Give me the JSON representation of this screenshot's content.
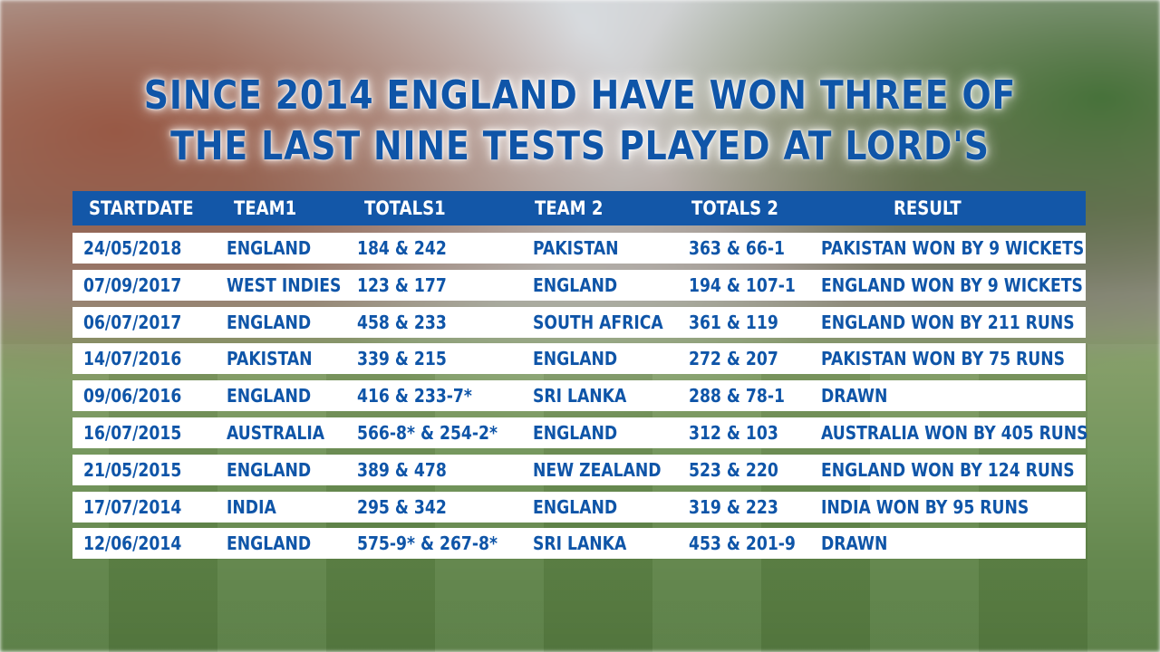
{
  "headline": {
    "line1": "SINCE 2014 ENGLAND HAVE WON THREE OF",
    "line2": "THE LAST NINE TESTS PLAYED AT LORD'S"
  },
  "colors": {
    "accent": "#1357a8",
    "text": "#0f55a8",
    "row_bg": "#ffffff"
  },
  "table": {
    "headers": [
      "STARTDATE",
      "TEAM1",
      "TOTALS1",
      "TEAM 2",
      "TOTALS 2",
      "RESULT"
    ],
    "rows": [
      [
        "24/05/2018",
        "ENGLAND",
        "184 & 242",
        "PAKISTAN",
        "363 & 66-1",
        "PAKISTAN WON BY 9 WICKETS"
      ],
      [
        "07/09/2017",
        "WEST INDIES",
        "123 & 177",
        "ENGLAND",
        "194 & 107-1",
        "ENGLAND WON BY 9 WICKETS"
      ],
      [
        "06/07/2017",
        "ENGLAND",
        "458 & 233",
        "SOUTH AFRICA",
        "361 & 119",
        "ENGLAND WON BY 211 RUNS"
      ],
      [
        "14/07/2016",
        "PAKISTAN",
        "339 & 215",
        "ENGLAND",
        "272 & 207",
        "PAKISTAN WON BY 75 RUNS"
      ],
      [
        "09/06/2016",
        "ENGLAND",
        "416 & 233-7*",
        "SRI LANKA",
        "288 & 78-1",
        "DRAWN"
      ],
      [
        "16/07/2015",
        "AUSTRALIA",
        "566-8* & 254-2*",
        "ENGLAND",
        "312 & 103",
        "AUSTRALIA WON BY 405 RUNS"
      ],
      [
        "21/05/2015",
        "ENGLAND",
        "389 & 478",
        "NEW ZEALAND",
        "523 & 220",
        "ENGLAND WON BY 124 RUNS"
      ],
      [
        "17/07/2014",
        "INDIA",
        "295 & 342",
        "ENGLAND",
        "319 & 223",
        "INDIA WON BY 95 RUNS"
      ],
      [
        "12/06/2014",
        "ENGLAND",
        "575-9* & 267-8*",
        "SRI LANKA",
        "453 & 201-9",
        "DRAWN"
      ]
    ]
  }
}
